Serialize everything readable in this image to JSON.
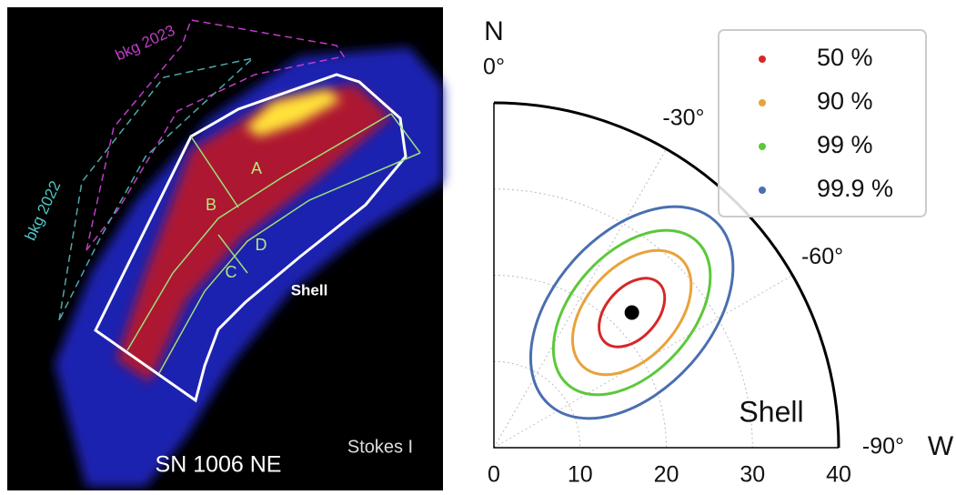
{
  "image": {
    "labels": {
      "bkg_2023": "bkg 2023",
      "bkg_2022": "bkg 2022",
      "a": "A",
      "b": "B",
      "c": "C",
      "d": "D",
      "shell": "Shell",
      "stokes": "Stokes I",
      "caption": "SN 1006 NE"
    }
  },
  "chart_data": {
    "type": "polar",
    "north_label": "N",
    "west_label": "W",
    "annotation": "Shell",
    "rlim": [
      0,
      40
    ],
    "rticks": [
      0,
      10,
      20,
      30,
      40
    ],
    "thetalim": [
      0,
      -90
    ],
    "thetaticks": [
      {
        "value": 0,
        "label": "0°"
      },
      {
        "value": -30,
        "label": "-30°"
      },
      {
        "value": -60,
        "label": "-60°"
      },
      {
        "value": -90,
        "label": "-90°"
      }
    ],
    "grid": true,
    "point": {
      "theta": -45.6,
      "r": 22.4,
      "color": "#000000"
    },
    "contours": [
      {
        "name": "50 %",
        "color": "#d62728"
      },
      {
        "name": "90 %",
        "color": "#e8a33a"
      },
      {
        "name": "99 %",
        "color": "#5cc83a"
      },
      {
        "name": "99.9 %",
        "color": "#4a6fb0"
      }
    ],
    "legend": "upper right"
  }
}
